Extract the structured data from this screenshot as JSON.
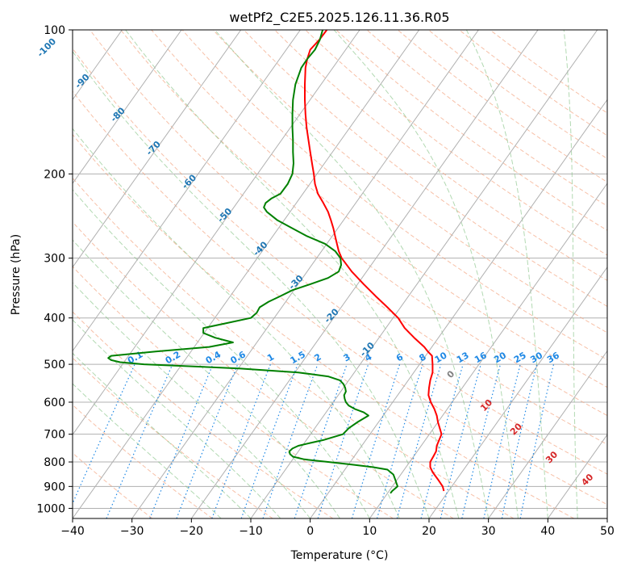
{
  "chart_data": {
    "type": "line",
    "title": "wetPf2_C2E5.2025.126.11.36.R05",
    "xlabel": "Temperature (°C)",
    "ylabel": "Pressure (hPa)",
    "xlim": [
      -40,
      50
    ],
    "ylim": [
      1050,
      100
    ],
    "y_scale": "log",
    "grid": true,
    "x_ticks": [
      "−40",
      "−30",
      "−20",
      "−10",
      "0",
      "10",
      "20",
      "30",
      "40",
      "50"
    ],
    "x_tick_values": [
      -40,
      -30,
      -20,
      -10,
      0,
      10,
      20,
      30,
      40,
      50
    ],
    "y_ticks": [
      "100",
      "200",
      "300",
      "400",
      "500",
      "600",
      "700",
      "800",
      "900",
      "1000"
    ],
    "y_tick_values": [
      100,
      200,
      300,
      400,
      500,
      600,
      700,
      800,
      900,
      1000
    ],
    "series": [
      {
        "color": "#ff0000",
        "p": [
          920,
          900,
          870,
          840,
          820,
          800,
          780,
          760,
          740,
          720,
          700,
          680,
          660,
          640,
          620,
          600,
          580,
          560,
          540,
          520,
          500,
          480,
          470,
          460,
          440,
          420,
          400,
          380,
          360,
          340,
          320,
          300,
          290,
          280,
          270,
          260,
          250,
          240,
          230,
          220,
          210,
          200,
          190,
          180,
          170,
          160,
          150,
          140,
          130,
          120,
          115,
          110,
          105,
          100
        ],
        "t": [
          22.5,
          22.3,
          21.5,
          20.6,
          20.2,
          20.2,
          20.7,
          21.2,
          21.3,
          21.7,
          22.1,
          21.8,
          21.5,
          21.3,
          20.9,
          20.3,
          19.9,
          20.0,
          20.2,
          20.6,
          20.6,
          20.5,
          19.8,
          19.2,
          17.5,
          15.9,
          14.8,
          13.0,
          11.0,
          9.0,
          7.0,
          5.3,
          4.8,
          4.5,
          4.2,
          3.9,
          3.5,
          3.0,
          2.2,
          1.3,
          0.8,
          0.6,
          0.3,
          0.0,
          -0.3,
          -0.6,
          -0.8,
          -0.9,
          -0.9,
          -0.8,
          -0.5,
          0.0,
          1.5,
          2.8
        ]
      },
      {
        "color": "#008000",
        "p": [
          930,
          920,
          900,
          870,
          850,
          830,
          820,
          810,
          800,
          790,
          780,
          770,
          760,
          750,
          740,
          730,
          720,
          700,
          680,
          660,
          640,
          630,
          620,
          610,
          600,
          590,
          580,
          570,
          560,
          550,
          540,
          530,
          520,
          510,
          500,
          495,
          490,
          485,
          480,
          470,
          460,
          450,
          440,
          430,
          420,
          410,
          400,
          390,
          380,
          370,
          360,
          350,
          340,
          330,
          320,
          310,
          300,
          290,
          280,
          270,
          260,
          250,
          240,
          235,
          230,
          225,
          220,
          210,
          200,
          190,
          180,
          170,
          160,
          150,
          140,
          130,
          120,
          115,
          110,
          105,
          100
        ],
        "t": [
          13.5,
          13.8,
          14.7,
          14.3,
          14.0,
          13.0,
          10.5,
          7.0,
          3.0,
          -1.0,
          -2.9,
          -3.4,
          -3.5,
          -3.0,
          -2.0,
          0.0,
          2.2,
          5.5,
          6.5,
          8.0,
          9.8,
          9.0,
          7.5,
          6.5,
          6.0,
          5.8,
          5.7,
          6.0,
          5.9,
          5.6,
          5.0,
          3.0,
          -2.0,
          -12.0,
          -28.0,
          -32.0,
          -33.5,
          -34.0,
          -33.5,
          -26.0,
          -17.0,
          -13.0,
          -16.0,
          -18.0,
          -18.0,
          -14.0,
          -10.0,
          -9.0,
          -8.5,
          -7.0,
          -5.0,
          -3.0,
          0.0,
          3.0,
          4.8,
          5.2,
          5.1,
          4.2,
          2.5,
          -0.5,
          -3.0,
          -5.5,
          -7.3,
          -7.8,
          -7.5,
          -6.5,
          -5.0,
          -3.8,
          -3.0,
          -2.8,
          -2.9,
          -2.9,
          -3.0,
          -3.0,
          -2.9,
          -2.5,
          -1.5,
          -0.5,
          0.8,
          1.6,
          2.1
        ]
      }
    ],
    "isotherm_labels": [
      "-100",
      "-90",
      "-80",
      "-70",
      "-60",
      "-50",
      "-40",
      "-30",
      "-20",
      "-10"
    ],
    "mixing_ratio_labels": [
      "0.1",
      "0.2",
      "0.4",
      "0.6",
      "1",
      "1.5",
      "2",
      "3",
      "4",
      "6",
      "8",
      "10",
      "13",
      "16",
      "20",
      "25",
      "30",
      "36"
    ],
    "moist_adiabat_labels": [
      "0",
      "10",
      "20",
      "30",
      "40"
    ],
    "colors": {
      "temperature": "#ff0000",
      "dewpoint": "#008000",
      "isotherm": "#b0b0b0",
      "dry_adiabat": "#f4a582",
      "moist_adiabat": "#7fbf7f",
      "mixing_ratio": "#1e88e5",
      "isotherm_label": "#1f77b4",
      "moist_label": "#d62728"
    }
  }
}
